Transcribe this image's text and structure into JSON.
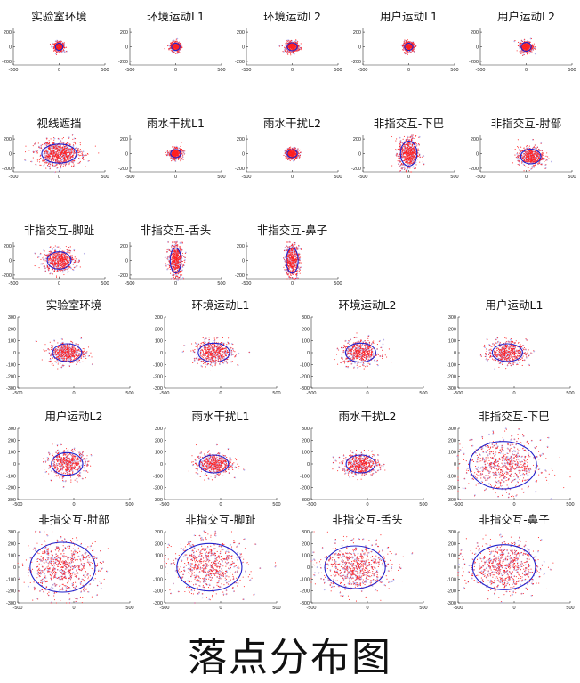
{
  "figure_title": "落点分布图",
  "chart_data": [
    {
      "type": "scatter",
      "title": "实验室环境",
      "xlim": [
        -500,
        500
      ],
      "ylim": [
        -250,
        250
      ],
      "xticks": [
        -500,
        0,
        500
      ],
      "yticks": [
        -200,
        0,
        200
      ],
      "center": [
        0,
        0
      ],
      "ellipse_radii": [
        40,
        50
      ],
      "spread": [
        28,
        32
      ],
      "points": 350
    },
    {
      "type": "scatter",
      "title": "环境运动L1",
      "xlim": [
        -500,
        500
      ],
      "ylim": [
        -250,
        250
      ],
      "xticks": [
        -500,
        0,
        500
      ],
      "yticks": [
        -200,
        0,
        200
      ],
      "center": [
        0,
        0
      ],
      "ellipse_radii": [
        45,
        50
      ],
      "spread": [
        30,
        32
      ],
      "points": 350
    },
    {
      "type": "scatter",
      "title": "环境运动L2",
      "xlim": [
        -500,
        500
      ],
      "ylim": [
        -250,
        250
      ],
      "xticks": [
        -500,
        0,
        500
      ],
      "yticks": [
        -200,
        0,
        200
      ],
      "center": [
        0,
        0
      ],
      "ellipse_radii": [
        55,
        55
      ],
      "spread": [
        36,
        36
      ],
      "points": 350
    },
    {
      "type": "scatter",
      "title": "用户运动L1",
      "xlim": [
        -500,
        500
      ],
      "ylim": [
        -250,
        250
      ],
      "xticks": [
        -500,
        0,
        500
      ],
      "yticks": [
        -200,
        0,
        200
      ],
      "center": [
        0,
        0
      ],
      "ellipse_radii": [
        45,
        50
      ],
      "spread": [
        30,
        32
      ],
      "points": 350
    },
    {
      "type": "scatter",
      "title": "用户运动L2",
      "xlim": [
        -500,
        500
      ],
      "ylim": [
        -250,
        250
      ],
      "xticks": [
        -500,
        0,
        500
      ],
      "yticks": [
        -200,
        0,
        200
      ],
      "center": [
        0,
        0
      ],
      "ellipse_radii": [
        55,
        60
      ],
      "spread": [
        36,
        40
      ],
      "points": 350
    },
    {
      "type": "scatter",
      "title": "视线遮挡",
      "xlim": [
        -500,
        500
      ],
      "ylim": [
        -250,
        250
      ],
      "xticks": [
        -500,
        0,
        500
      ],
      "yticks": [
        -200,
        0,
        200
      ],
      "center": [
        0,
        0
      ],
      "ellipse_radii": [
        190,
        130
      ],
      "spread": [
        120,
        85
      ],
      "points": 700
    },
    {
      "type": "scatter",
      "title": "雨水干扰L1",
      "xlim": [
        -500,
        500
      ],
      "ylim": [
        -250,
        250
      ],
      "xticks": [
        -500,
        0,
        500
      ],
      "yticks": [
        -200,
        0,
        200
      ],
      "center": [
        0,
        0
      ],
      "ellipse_radii": [
        55,
        55
      ],
      "spread": [
        36,
        36
      ],
      "points": 350
    },
    {
      "type": "scatter",
      "title": "雨水干扰L2",
      "xlim": [
        -500,
        500
      ],
      "ylim": [
        -250,
        250
      ],
      "xticks": [
        -500,
        0,
        500
      ],
      "yticks": [
        -200,
        0,
        200
      ],
      "center": [
        0,
        0
      ],
      "ellipse_radii": [
        55,
        55
      ],
      "spread": [
        36,
        36
      ],
      "points": 350
    },
    {
      "type": "scatter",
      "title": "非指交互-下巴",
      "xlim": [
        -500,
        500
      ],
      "ylim": [
        -250,
        250
      ],
      "xticks": [
        -500,
        0,
        500
      ],
      "yticks": [
        -200,
        0,
        200
      ],
      "center": [
        0,
        0
      ],
      "ellipse_radii": [
        90,
        170
      ],
      "spread": [
        55,
        110
      ],
      "points": 500
    },
    {
      "type": "scatter",
      "title": "非指交互-肘部",
      "xlim": [
        -500,
        500
      ],
      "ylim": [
        -250,
        250
      ],
      "xticks": [
        -500,
        0,
        500
      ],
      "yticks": [
        -200,
        0,
        200
      ],
      "center": [
        50,
        -40
      ],
      "ellipse_radii": [
        110,
        100
      ],
      "spread": [
        70,
        65
      ],
      "points": 450
    },
    {
      "type": "scatter",
      "title": "非指交互-脚趾",
      "xlim": [
        -500,
        500
      ],
      "ylim": [
        -250,
        250
      ],
      "xticks": [
        -500,
        0,
        500
      ],
      "yticks": [
        -200,
        0,
        200
      ],
      "center": [
        0,
        0
      ],
      "ellipse_radii": [
        130,
        120
      ],
      "spread": [
        85,
        78
      ],
      "points": 500
    },
    {
      "type": "scatter",
      "title": "非指交互-舌头",
      "xlim": [
        -500,
        500
      ],
      "ylim": [
        -250,
        250
      ],
      "xticks": [
        -500,
        0,
        500
      ],
      "yticks": [
        -200,
        0,
        200
      ],
      "center": [
        0,
        0
      ],
      "ellipse_radii": [
        60,
        170
      ],
      "spread": [
        38,
        110
      ],
      "points": 450
    },
    {
      "type": "scatter",
      "title": "非指交互-鼻子",
      "xlim": [
        -500,
        500
      ],
      "ylim": [
        -250,
        250
      ],
      "xticks": [
        -500,
        0,
        500
      ],
      "yticks": [
        -200,
        0,
        200
      ],
      "center": [
        0,
        0
      ],
      "ellipse_radii": [
        65,
        175
      ],
      "spread": [
        40,
        112
      ],
      "points": 450
    },
    {
      "type": "scatter",
      "title": "实验室环境",
      "xlim": [
        -500,
        500
      ],
      "ylim": [
        -300,
        300
      ],
      "xticks": [
        -500,
        0,
        500
      ],
      "yticks": [
        -300,
        -200,
        -100,
        0,
        100,
        200,
        300
      ],
      "center": [
        -60,
        0
      ],
      "ellipse_radii": [
        130,
        75
      ],
      "spread": [
        80,
        45
      ],
      "points": 450
    },
    {
      "type": "scatter",
      "title": "环境运动L1",
      "xlim": [
        -500,
        500
      ],
      "ylim": [
        -300,
        300
      ],
      "xticks": [
        -500,
        0,
        500
      ],
      "yticks": [
        -300,
        -200,
        -100,
        0,
        100,
        200,
        300
      ],
      "center": [
        -60,
        0
      ],
      "ellipse_radii": [
        140,
        80
      ],
      "spread": [
        88,
        50
      ],
      "points": 450
    },
    {
      "type": "scatter",
      "title": "环境运动L2",
      "xlim": [
        -500,
        500
      ],
      "ylim": [
        -300,
        300
      ],
      "xticks": [
        -500,
        0,
        500
      ],
      "yticks": [
        -300,
        -200,
        -100,
        0,
        100,
        200,
        300
      ],
      "center": [
        -60,
        0
      ],
      "ellipse_radii": [
        135,
        80
      ],
      "spread": [
        85,
        50
      ],
      "points": 450
    },
    {
      "type": "scatter",
      "title": "用户运动L1",
      "xlim": [
        -500,
        500
      ],
      "ylim": [
        -300,
        300
      ],
      "xticks": [
        -500,
        0,
        500
      ],
      "yticks": [
        -300,
        -200,
        -100,
        0,
        100,
        200,
        300
      ],
      "center": [
        -60,
        0
      ],
      "ellipse_radii": [
        135,
        75
      ],
      "spread": [
        85,
        48
      ],
      "points": 450
    },
    {
      "type": "scatter",
      "title": "用户运动L2",
      "xlim": [
        -500,
        500
      ],
      "ylim": [
        -300,
        300
      ],
      "xticks": [
        -500,
        0,
        500
      ],
      "yticks": [
        -300,
        -200,
        -100,
        0,
        100,
        200,
        300
      ],
      "center": [
        -60,
        0
      ],
      "ellipse_radii": [
        140,
        95
      ],
      "spread": [
        88,
        58
      ],
      "points": 450
    },
    {
      "type": "scatter",
      "title": "雨水干扰L1",
      "xlim": [
        -500,
        500
      ],
      "ylim": [
        -300,
        300
      ],
      "xticks": [
        -500,
        0,
        500
      ],
      "yticks": [
        -300,
        -200,
        -100,
        0,
        100,
        200,
        300
      ],
      "center": [
        -60,
        0
      ],
      "ellipse_radii": [
        130,
        75
      ],
      "spread": [
        80,
        45
      ],
      "points": 450
    },
    {
      "type": "scatter",
      "title": "雨水干扰L2",
      "xlim": [
        -500,
        500
      ],
      "ylim": [
        -300,
        300
      ],
      "xticks": [
        -500,
        0,
        500
      ],
      "yticks": [
        -300,
        -200,
        -100,
        0,
        100,
        200,
        300
      ],
      "center": [
        -60,
        0
      ],
      "ellipse_radii": [
        130,
        75
      ],
      "spread": [
        80,
        45
      ],
      "points": 450
    },
    {
      "type": "scatter",
      "title": "非指交互-下巴",
      "xlim": [
        -500,
        500
      ],
      "ylim": [
        -300,
        300
      ],
      "xticks": [
        -500,
        0,
        500
      ],
      "yticks": [
        -300,
        -200,
        -100,
        0,
        100,
        200,
        300
      ],
      "center": [
        -100,
        -10
      ],
      "ellipse_radii": [
        300,
        200
      ],
      "spread": [
        170,
        110
      ],
      "points": 600
    },
    {
      "type": "scatter",
      "title": "非指交互-肘部",
      "xlim": [
        -500,
        500
      ],
      "ylim": [
        -300,
        300
      ],
      "xticks": [
        -500,
        0,
        500
      ],
      "yticks": [
        -300,
        -200,
        -100,
        0,
        100,
        200,
        300
      ],
      "center": [
        -100,
        0
      ],
      "ellipse_radii": [
        290,
        210
      ],
      "spread": [
        165,
        115
      ],
      "points": 600
    },
    {
      "type": "scatter",
      "title": "非指交互-脚趾",
      "xlim": [
        -500,
        500
      ],
      "ylim": [
        -300,
        300
      ],
      "xticks": [
        -500,
        0,
        500
      ],
      "yticks": [
        -300,
        -200,
        -100,
        0,
        100,
        200,
        300
      ],
      "center": [
        -100,
        0
      ],
      "ellipse_radii": [
        290,
        200
      ],
      "spread": [
        165,
        112
      ],
      "points": 600
    },
    {
      "type": "scatter",
      "title": "非指交互-舌头",
      "xlim": [
        -500,
        500
      ],
      "ylim": [
        -300,
        300
      ],
      "xticks": [
        -500,
        0,
        500
      ],
      "yticks": [
        -300,
        -200,
        -100,
        0,
        100,
        200,
        300
      ],
      "center": [
        -110,
        0
      ],
      "ellipse_radii": [
        270,
        180
      ],
      "spread": [
        155,
        100
      ],
      "points": 600
    },
    {
      "type": "scatter",
      "title": "非指交互-鼻子",
      "xlim": [
        -500,
        500
      ],
      "ylim": [
        -300,
        300
      ],
      "xticks": [
        -500,
        0,
        500
      ],
      "yticks": [
        -300,
        -200,
        -100,
        0,
        100,
        200,
        300
      ],
      "center": [
        -90,
        0
      ],
      "ellipse_radii": [
        280,
        190
      ],
      "spread": [
        160,
        105
      ],
      "points": 600
    }
  ],
  "colors": {
    "points": "#ff2020",
    "ellipse": "#2222cc",
    "halo": "#b8b8f0"
  }
}
